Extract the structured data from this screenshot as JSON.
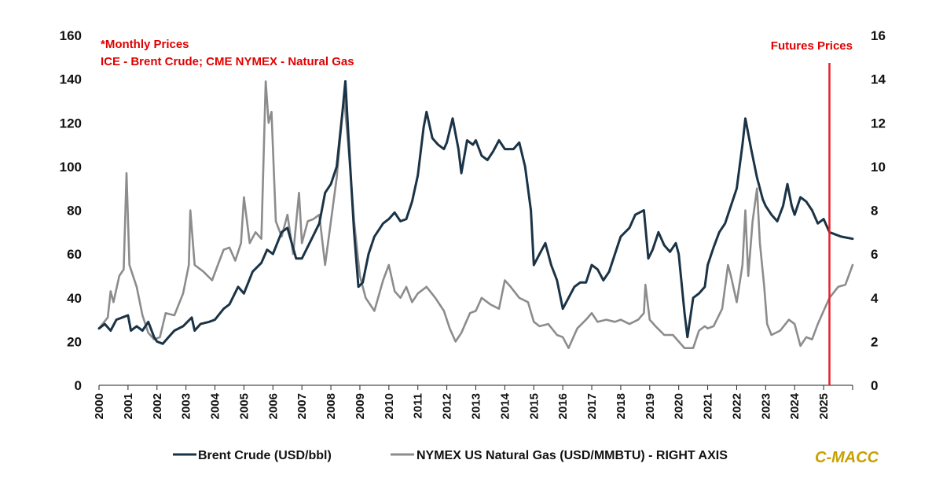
{
  "chart_data": {
    "type": "line",
    "notes": [
      "*Monthly Prices",
      "ICE - Brent Crude; CME NYMEX - Natural Gas"
    ],
    "marker": {
      "label": "Futures Prices",
      "x": 2025.2,
      "color": "#e8202a"
    },
    "brand": {
      "text": "C-MACC",
      "color": "#c9a000"
    },
    "x_ticks": [
      "2000",
      "2001",
      "2002",
      "2003",
      "2004",
      "2005",
      "2006",
      "2007",
      "2008",
      "2009",
      "2010",
      "2011",
      "2012",
      "2013",
      "2014",
      "2015",
      "2016",
      "2017",
      "2018",
      "2019",
      "2020",
      "2021",
      "2022",
      "2023",
      "2024",
      "2025"
    ],
    "xlim": [
      2000,
      2026
    ],
    "y_left": {
      "ticks": [
        "0",
        "20",
        "40",
        "60",
        "80",
        "100",
        "120",
        "140",
        "160"
      ],
      "ylim": [
        0,
        160
      ]
    },
    "y_right": {
      "ticks": [
        "0",
        "2",
        "4",
        "6",
        "8",
        "10",
        "12",
        "14",
        "16"
      ],
      "ylim": [
        0,
        16
      ]
    },
    "legend": [
      "Brent Crude (USD/bbl)",
      "NYMEX US Natural Gas (USD/MMBTU) - RIGHT AXIS"
    ],
    "series": [
      {
        "name": "Brent Crude (USD/bbl)",
        "axis": "left",
        "color": "#1a3346",
        "points": [
          [
            2000.0,
            26
          ],
          [
            2000.2,
            28
          ],
          [
            2000.4,
            25
          ],
          [
            2000.6,
            30
          ],
          [
            2000.8,
            31
          ],
          [
            2001.0,
            32
          ],
          [
            2001.1,
            25
          ],
          [
            2001.3,
            27
          ],
          [
            2001.5,
            25
          ],
          [
            2001.7,
            29
          ],
          [
            2001.9,
            22
          ],
          [
            2002.0,
            20
          ],
          [
            2002.2,
            19
          ],
          [
            2002.4,
            22
          ],
          [
            2002.6,
            25
          ],
          [
            2002.9,
            27
          ],
          [
            2003.2,
            31
          ],
          [
            2003.3,
            25
          ],
          [
            2003.5,
            28
          ],
          [
            2003.8,
            29
          ],
          [
            2004.0,
            30
          ],
          [
            2004.3,
            35
          ],
          [
            2004.5,
            37
          ],
          [
            2004.8,
            45
          ],
          [
            2005.0,
            42
          ],
          [
            2005.3,
            52
          ],
          [
            2005.6,
            56
          ],
          [
            2005.8,
            62
          ],
          [
            2006.0,
            60
          ],
          [
            2006.3,
            70
          ],
          [
            2006.5,
            72
          ],
          [
            2006.8,
            58
          ],
          [
            2007.0,
            58
          ],
          [
            2007.3,
            66
          ],
          [
            2007.6,
            74
          ],
          [
            2007.8,
            88
          ],
          [
            2008.0,
            92
          ],
          [
            2008.2,
            100
          ],
          [
            2008.4,
            125
          ],
          [
            2008.5,
            139
          ],
          [
            2008.6,
            115
          ],
          [
            2008.8,
            70
          ],
          [
            2008.95,
            45
          ],
          [
            2009.1,
            47
          ],
          [
            2009.3,
            60
          ],
          [
            2009.5,
            68
          ],
          [
            2009.8,
            74
          ],
          [
            2010.0,
            76
          ],
          [
            2010.2,
            79
          ],
          [
            2010.4,
            75
          ],
          [
            2010.6,
            76
          ],
          [
            2010.8,
            84
          ],
          [
            2011.0,
            96
          ],
          [
            2011.2,
            118
          ],
          [
            2011.3,
            125
          ],
          [
            2011.5,
            113
          ],
          [
            2011.7,
            110
          ],
          [
            2011.9,
            108
          ],
          [
            2012.0,
            111
          ],
          [
            2012.2,
            122
          ],
          [
            2012.4,
            108
          ],
          [
            2012.5,
            97
          ],
          [
            2012.7,
            112
          ],
          [
            2012.9,
            110
          ],
          [
            2013.0,
            112
          ],
          [
            2013.2,
            105
          ],
          [
            2013.4,
            103
          ],
          [
            2013.6,
            107
          ],
          [
            2013.8,
            112
          ],
          [
            2014.0,
            108
          ],
          [
            2014.3,
            108
          ],
          [
            2014.5,
            111
          ],
          [
            2014.7,
            100
          ],
          [
            2014.9,
            80
          ],
          [
            2015.0,
            55
          ],
          [
            2015.2,
            60
          ],
          [
            2015.4,
            65
          ],
          [
            2015.6,
            55
          ],
          [
            2015.8,
            48
          ],
          [
            2016.0,
            35
          ],
          [
            2016.2,
            40
          ],
          [
            2016.4,
            45
          ],
          [
            2016.6,
            47
          ],
          [
            2016.8,
            47
          ],
          [
            2017.0,
            55
          ],
          [
            2017.2,
            53
          ],
          [
            2017.4,
            48
          ],
          [
            2017.6,
            52
          ],
          [
            2017.8,
            60
          ],
          [
            2018.0,
            68
          ],
          [
            2018.3,
            72
          ],
          [
            2018.5,
            78
          ],
          [
            2018.8,
            80
          ],
          [
            2018.95,
            58
          ],
          [
            2019.1,
            62
          ],
          [
            2019.3,
            70
          ],
          [
            2019.5,
            64
          ],
          [
            2019.7,
            61
          ],
          [
            2019.9,
            65
          ],
          [
            2020.0,
            60
          ],
          [
            2020.2,
            33
          ],
          [
            2020.3,
            22
          ],
          [
            2020.5,
            40
          ],
          [
            2020.7,
            42
          ],
          [
            2020.9,
            45
          ],
          [
            2021.0,
            55
          ],
          [
            2021.2,
            63
          ],
          [
            2021.4,
            70
          ],
          [
            2021.6,
            74
          ],
          [
            2021.8,
            82
          ],
          [
            2022.0,
            90
          ],
          [
            2022.2,
            110
          ],
          [
            2022.3,
            122
          ],
          [
            2022.4,
            115
          ],
          [
            2022.5,
            108
          ],
          [
            2022.7,
            95
          ],
          [
            2022.9,
            85
          ],
          [
            2023.0,
            82
          ],
          [
            2023.2,
            78
          ],
          [
            2023.4,
            75
          ],
          [
            2023.6,
            82
          ],
          [
            2023.75,
            92
          ],
          [
            2023.9,
            82
          ],
          [
            2024.0,
            78
          ],
          [
            2024.2,
            86
          ],
          [
            2024.4,
            84
          ],
          [
            2024.6,
            80
          ],
          [
            2024.8,
            74
          ],
          [
            2025.0,
            76
          ],
          [
            2025.2,
            70
          ],
          [
            2025.6,
            68
          ],
          [
            2026.0,
            67
          ]
        ]
      },
      {
        "name": "NYMEX US Natural Gas (USD/MMBTU) - RIGHT AXIS",
        "axis": "right",
        "color": "#8c8c8c",
        "points": [
          [
            2000.0,
            2.6
          ],
          [
            2000.3,
            3.1
          ],
          [
            2000.4,
            4.3
          ],
          [
            2000.5,
            3.8
          ],
          [
            2000.7,
            5.0
          ],
          [
            2000.85,
            5.3
          ],
          [
            2000.95,
            9.7
          ],
          [
            2001.05,
            5.5
          ],
          [
            2001.3,
            4.5
          ],
          [
            2001.5,
            3.2
          ],
          [
            2001.7,
            2.4
          ],
          [
            2001.9,
            2.1
          ],
          [
            2002.1,
            2.2
          ],
          [
            2002.3,
            3.3
          ],
          [
            2002.6,
            3.2
          ],
          [
            2002.9,
            4.2
          ],
          [
            2003.1,
            5.5
          ],
          [
            2003.15,
            8.0
          ],
          [
            2003.3,
            5.5
          ],
          [
            2003.6,
            5.2
          ],
          [
            2003.9,
            4.8
          ],
          [
            2004.1,
            5.5
          ],
          [
            2004.3,
            6.2
          ],
          [
            2004.5,
            6.3
          ],
          [
            2004.7,
            5.7
          ],
          [
            2004.9,
            6.5
          ],
          [
            2005.0,
            8.6
          ],
          [
            2005.2,
            6.5
          ],
          [
            2005.4,
            7.0
          ],
          [
            2005.6,
            6.7
          ],
          [
            2005.75,
            13.9
          ],
          [
            2005.85,
            12.0
          ],
          [
            2005.95,
            12.5
          ],
          [
            2006.1,
            7.5
          ],
          [
            2006.3,
            6.8
          ],
          [
            2006.5,
            7.8
          ],
          [
            2006.7,
            6.0
          ],
          [
            2006.9,
            8.8
          ],
          [
            2007.0,
            6.5
          ],
          [
            2007.2,
            7.5
          ],
          [
            2007.4,
            7.6
          ],
          [
            2007.6,
            7.8
          ],
          [
            2007.8,
            5.5
          ],
          [
            2008.0,
            7.5
          ],
          [
            2008.2,
            9.5
          ],
          [
            2008.45,
            13.2
          ],
          [
            2008.6,
            11.0
          ],
          [
            2008.8,
            7.5
          ],
          [
            2009.0,
            5.0
          ],
          [
            2009.2,
            4.0
          ],
          [
            2009.5,
            3.4
          ],
          [
            2009.8,
            4.8
          ],
          [
            2010.0,
            5.5
          ],
          [
            2010.2,
            4.3
          ],
          [
            2010.4,
            4.0
          ],
          [
            2010.6,
            4.5
          ],
          [
            2010.8,
            3.8
          ],
          [
            2011.0,
            4.2
          ],
          [
            2011.3,
            4.5
          ],
          [
            2011.6,
            4.0
          ],
          [
            2011.9,
            3.4
          ],
          [
            2012.1,
            2.6
          ],
          [
            2012.3,
            2.0
          ],
          [
            2012.5,
            2.4
          ],
          [
            2012.8,
            3.3
          ],
          [
            2013.0,
            3.4
          ],
          [
            2013.2,
            4.0
          ],
          [
            2013.5,
            3.7
          ],
          [
            2013.8,
            3.5
          ],
          [
            2014.0,
            4.8
          ],
          [
            2014.2,
            4.5
          ],
          [
            2014.5,
            4.0
          ],
          [
            2014.8,
            3.8
          ],
          [
            2015.0,
            2.9
          ],
          [
            2015.2,
            2.7
          ],
          [
            2015.5,
            2.8
          ],
          [
            2015.8,
            2.3
          ],
          [
            2016.0,
            2.2
          ],
          [
            2016.2,
            1.7
          ],
          [
            2016.5,
            2.6
          ],
          [
            2016.8,
            3.0
          ],
          [
            2017.0,
            3.3
          ],
          [
            2017.2,
            2.9
          ],
          [
            2017.5,
            3.0
          ],
          [
            2017.8,
            2.9
          ],
          [
            2018.0,
            3.0
          ],
          [
            2018.3,
            2.8
          ],
          [
            2018.6,
            3.0
          ],
          [
            2018.8,
            3.3
          ],
          [
            2018.85,
            4.6
          ],
          [
            2019.0,
            3.0
          ],
          [
            2019.2,
            2.7
          ],
          [
            2019.5,
            2.3
          ],
          [
            2019.8,
            2.3
          ],
          [
            2020.0,
            2.0
          ],
          [
            2020.2,
            1.7
          ],
          [
            2020.5,
            1.7
          ],
          [
            2020.7,
            2.5
          ],
          [
            2020.9,
            2.7
          ],
          [
            2021.0,
            2.6
          ],
          [
            2021.2,
            2.7
          ],
          [
            2021.5,
            3.5
          ],
          [
            2021.7,
            5.5
          ],
          [
            2021.8,
            5.0
          ],
          [
            2022.0,
            3.8
          ],
          [
            2022.2,
            5.5
          ],
          [
            2022.3,
            8.0
          ],
          [
            2022.4,
            5.0
          ],
          [
            2022.55,
            7.5
          ],
          [
            2022.7,
            9.0
          ],
          [
            2022.8,
            6.5
          ],
          [
            2022.95,
            4.5
          ],
          [
            2023.05,
            2.8
          ],
          [
            2023.2,
            2.3
          ],
          [
            2023.5,
            2.5
          ],
          [
            2023.8,
            3.0
          ],
          [
            2024.0,
            2.8
          ],
          [
            2024.2,
            1.8
          ],
          [
            2024.4,
            2.2
          ],
          [
            2024.6,
            2.1
          ],
          [
            2024.8,
            2.8
          ],
          [
            2025.0,
            3.4
          ],
          [
            2025.2,
            4.0
          ],
          [
            2025.5,
            4.5
          ],
          [
            2025.75,
            4.6
          ],
          [
            2026.0,
            5.5
          ]
        ]
      }
    ]
  }
}
